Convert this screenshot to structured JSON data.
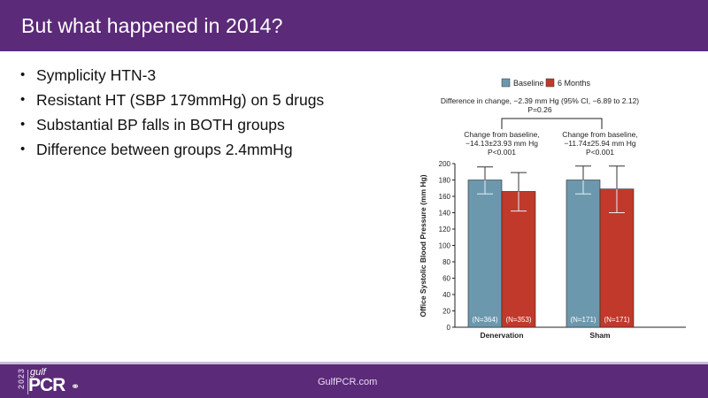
{
  "header": {
    "title": "But what happened in 2014?"
  },
  "bullets": [
    "Symplicity HTN-3",
    "Resistant HT (SBP 179mmHg) on 5 drugs",
    "Substantial BP falls in BOTH groups",
    "Difference between groups 2.4mmHg"
  ],
  "footer": {
    "url": "GulfPCR.com",
    "logo": {
      "year": "2023",
      "gulf": "gulf",
      "pcr": "PCR",
      "gim": "GIM"
    }
  },
  "chart_data": {
    "type": "bar",
    "title": "",
    "ylabel": "Office Systolic Blood Pressure (mm Hg)",
    "xlabel": "",
    "categories": [
      "Denervation",
      "Sham"
    ],
    "ylim": [
      0,
      200
    ],
    "yticks": [
      0,
      20,
      40,
      60,
      80,
      100,
      120,
      140,
      160,
      180,
      200
    ],
    "legend": {
      "placement": "top-center",
      "entries": [
        "Baseline",
        "6 Months"
      ]
    },
    "colors": {
      "Baseline": "#6c98ae",
      "6 Months": "#c0392b"
    },
    "series": [
      {
        "name": "Baseline",
        "values": [
          180,
          180
        ],
        "error_low": [
          163,
          163
        ],
        "error_high": [
          196,
          197
        ],
        "n_labels": [
          "(N=364)",
          "(N=171)"
        ]
      },
      {
        "name": "6 Months",
        "values": [
          166,
          169
        ],
        "error_low": [
          142,
          140
        ],
        "error_high": [
          189,
          197
        ],
        "n_labels": [
          "(N=353)",
          "(N=171)"
        ]
      }
    ],
    "annotations": {
      "difference": "Difference in change, −2.39  mm Hg (95% CI, −6.89 to 2.12)",
      "difference_p": "P=0.26",
      "groups": [
        {
          "line1": "Change from baseline,",
          "line2": "−14.13±23.93 mm Hg",
          "line3": "P<0.001"
        },
        {
          "line1": "Change from baseline,",
          "line2": "−11.74±25.94 mm Hg",
          "line3": "P<0.001"
        }
      ]
    }
  }
}
